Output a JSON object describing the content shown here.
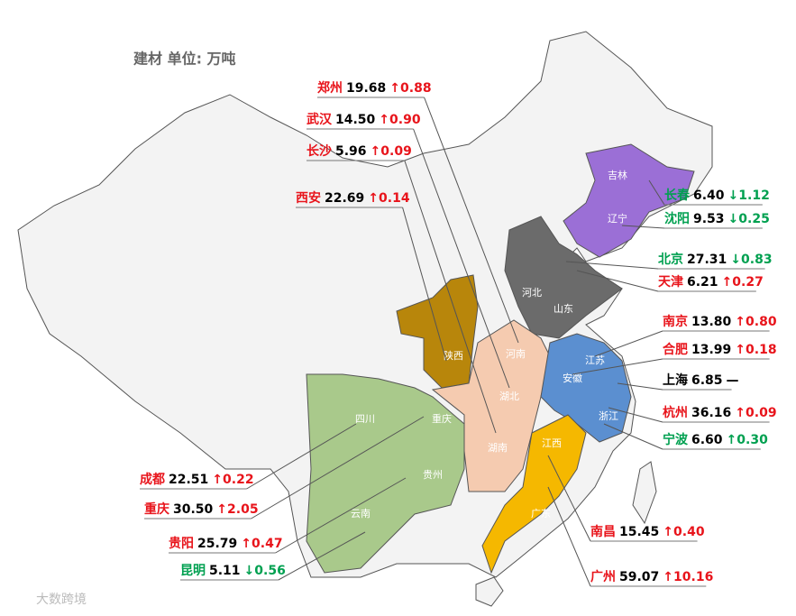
{
  "title": "建材  单位: 万吨",
  "watermark": "大数跨境",
  "provinces": [
    "吉林",
    "辽宁",
    "河北",
    "山东",
    "陕西",
    "河南",
    "湖北",
    "湖南",
    "安徽",
    "江苏",
    "浙江",
    "江西",
    "广东",
    "四川",
    "重庆",
    "贵州",
    "云南"
  ],
  "labels": [
    {
      "city": "郑州",
      "value": "19.68",
      "change": "↑0.88",
      "color": "#e8141b"
    },
    {
      "city": "武汉",
      "value": "14.50",
      "change": "↑0.90",
      "color": "#e8141b"
    },
    {
      "city": "长沙",
      "value": "5.96",
      "change": "↑0.09",
      "color": "#e8141b"
    },
    {
      "city": "西安",
      "value": "22.69",
      "change": "↑0.14",
      "color": "#e8141b"
    },
    {
      "city": "长春",
      "value": "6.40",
      "change": "↓1.12",
      "color": "#00a050"
    },
    {
      "city": "沈阳",
      "value": "9.53",
      "change": "↓0.25",
      "color": "#00a050"
    },
    {
      "city": "北京",
      "value": "27.31",
      "change": "↓0.83",
      "color": "#00a050"
    },
    {
      "city": "天津",
      "value": "6.21",
      "change": "↑0.27",
      "color": "#e8141b"
    },
    {
      "city": "南京",
      "value": "13.80",
      "change": "↑0.80",
      "color": "#e8141b"
    },
    {
      "city": "合肥",
      "value": "13.99",
      "change": "↑0.18",
      "color": "#e8141b"
    },
    {
      "city": "上海",
      "value": "6.85",
      "change": "—",
      "color": "#000000"
    },
    {
      "city": "杭州",
      "value": "36.16",
      "change": "↑0.09",
      "color": "#e8141b"
    },
    {
      "city": "宁波",
      "value": "6.60",
      "change": "↑0.30",
      "color": "#00a050"
    },
    {
      "city": "成都",
      "value": "22.51",
      "change": "↑0.22",
      "color": "#e8141b"
    },
    {
      "city": "重庆",
      "value": "30.50",
      "change": "↑2.05",
      "color": "#e8141b"
    },
    {
      "city": "贵阳",
      "value": "25.79",
      "change": "↑0.47",
      "color": "#e8141b"
    },
    {
      "city": "昆明",
      "value": "5.11",
      "change": "↓0.56",
      "color": "#00a050"
    },
    {
      "city": "南昌",
      "value": "15.45",
      "change": "↑0.40",
      "color": "#e8141b"
    },
    {
      "city": "广州",
      "value": "59.07",
      "change": "↑10.16",
      "color": "#e8141b"
    }
  ]
}
